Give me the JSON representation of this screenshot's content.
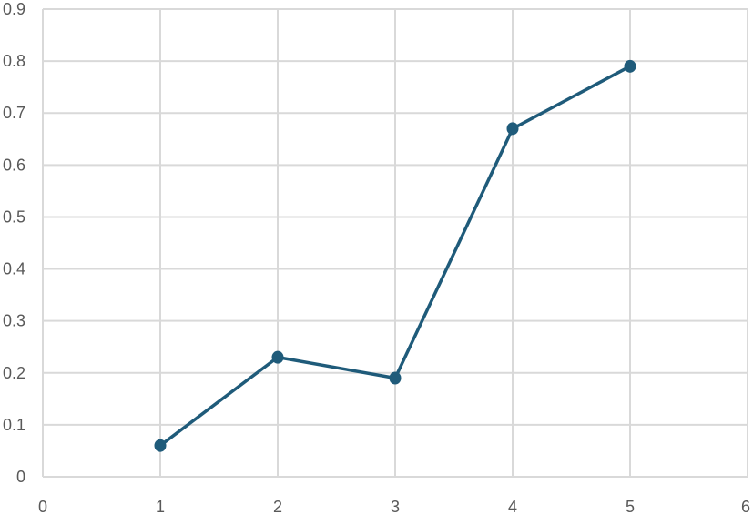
{
  "chart_data": {
    "type": "scatter",
    "title": "",
    "xlabel": "",
    "ylabel": "",
    "xlim": [
      0,
      6
    ],
    "ylim": [
      0,
      0.9
    ],
    "x_ticks": [
      "0",
      "1",
      "2",
      "3",
      "4",
      "5",
      "6"
    ],
    "y_ticks": [
      "0",
      "0.1",
      "0.2",
      "0.3",
      "0.4",
      "0.5",
      "0.6",
      "0.7",
      "0.8",
      "0.9"
    ],
    "grid": true,
    "legend": "none",
    "series": [
      {
        "x": [
          1,
          2,
          3,
          4,
          5
        ],
        "y": [
          0.06,
          0.23,
          0.19,
          0.67,
          0.79
        ],
        "color": "#1f5b7a",
        "marker": "circle",
        "line": "straight"
      }
    ]
  }
}
